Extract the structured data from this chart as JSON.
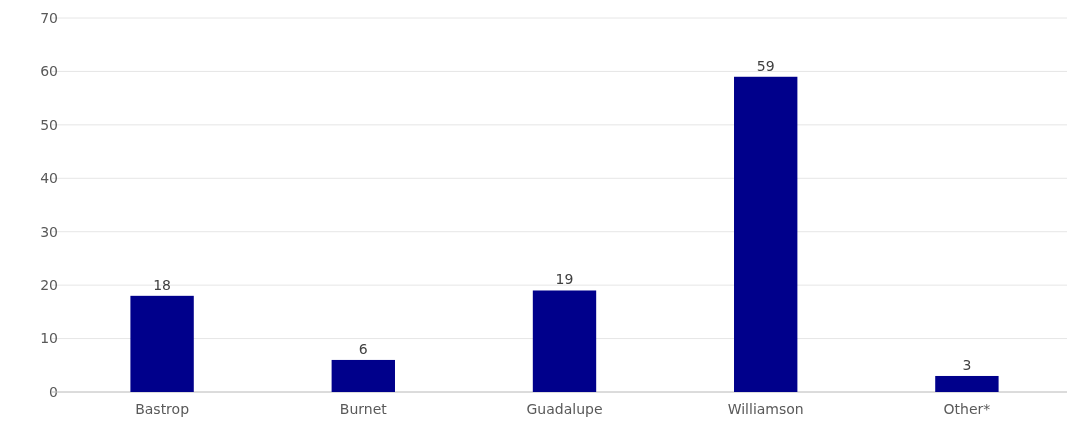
{
  "chart_data": {
    "type": "bar",
    "categories": [
      "Bastrop",
      "Burnet",
      "Guadalupe",
      "Williamson",
      "Other*"
    ],
    "values": [
      18,
      6,
      19,
      59,
      3
    ],
    "color": "#00008b",
    "ylim": [
      0,
      70
    ],
    "yticks": [
      0,
      10,
      20,
      30,
      40,
      50,
      60,
      70
    ],
    "grid": "y",
    "data_labels": true
  }
}
